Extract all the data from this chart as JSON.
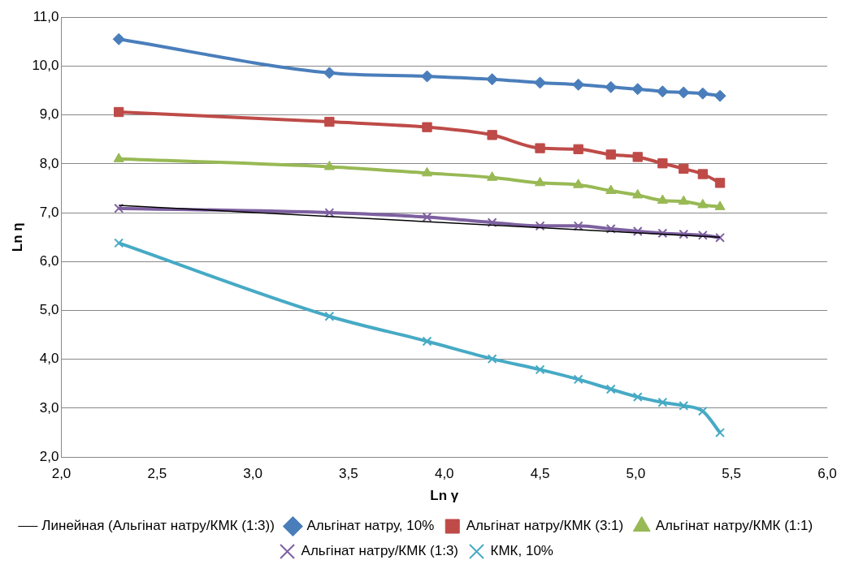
{
  "chart_data": {
    "type": "line",
    "xlabel": "Ln γ",
    "ylabel": "Ln η",
    "x": [
      2.3,
      3.4,
      3.91,
      4.25,
      4.5,
      4.7,
      4.87,
      5.01,
      5.14,
      5.25,
      5.35,
      5.44
    ],
    "xlim": [
      2.0,
      6.0
    ],
    "xticks": [
      {
        "value": 2,
        "label": "2,0"
      },
      {
        "value": 2.5,
        "label": "2,5"
      },
      {
        "value": 3,
        "label": "3,0"
      },
      {
        "value": 3.5,
        "label": "3,5"
      },
      {
        "value": 4,
        "label": "4,0"
      },
      {
        "value": 4.5,
        "label": "4,5"
      },
      {
        "value": 5,
        "label": "5,0"
      },
      {
        "value": 5.5,
        "label": "5,5"
      },
      {
        "value": 6,
        "label": "6,0"
      }
    ],
    "ylim": [
      2.0,
      11.0
    ],
    "yticks": [
      {
        "value": 2,
        "label": "2,0"
      },
      {
        "value": 3,
        "label": "3,0"
      },
      {
        "value": 4,
        "label": "4,0"
      },
      {
        "value": 5,
        "label": "5,0"
      },
      {
        "value": 6,
        "label": "6,0"
      },
      {
        "value": 7,
        "label": "7,0"
      },
      {
        "value": 8,
        "label": "8,0"
      },
      {
        "value": 9,
        "label": "9,0"
      },
      {
        "value": 10,
        "label": "10,0"
      },
      {
        "value": 11,
        "label": "11,0"
      }
    ],
    "grid": "y",
    "legend": "bottom",
    "series": [
      {
        "name": "Альгінат натру, 10%",
        "color": "#4a7ebb",
        "marker": "diamond",
        "values": [
          10.55,
          9.86,
          9.79,
          9.73,
          9.66,
          9.62,
          9.57,
          9.53,
          9.48,
          9.46,
          9.44,
          9.39
        ]
      },
      {
        "name": "Альгінат натру/КМК (3:1)",
        "color": "#be4b48",
        "marker": "square",
        "values": [
          9.06,
          8.86,
          8.75,
          8.59,
          8.32,
          8.3,
          8.19,
          8.14,
          8.01,
          7.9,
          7.79,
          7.61
        ]
      },
      {
        "name": "Альгінат натру/КМК (1:1)",
        "color": "#98b954",
        "marker": "triangle",
        "values": [
          8.1,
          7.94,
          7.81,
          7.72,
          7.61,
          7.57,
          7.45,
          7.36,
          7.25,
          7.23,
          7.16,
          7.12
        ]
      },
      {
        "name": "Альгінат натру/КМК (1:3)",
        "color": "#7d60a0",
        "marker": "cross",
        "values": [
          7.09,
          7.0,
          6.91,
          6.8,
          6.73,
          6.73,
          6.67,
          6.62,
          6.58,
          6.56,
          6.54,
          6.49
        ]
      },
      {
        "name": "КМК, 10%",
        "color": "#46aac5",
        "marker": "cross",
        "values": [
          6.38,
          4.88,
          4.37,
          4.01,
          3.79,
          3.59,
          3.39,
          3.23,
          3.12,
          3.05,
          2.94,
          2.5
        ]
      },
      {
        "name": "Линейная (Альгінат натру/КМК (1:3))",
        "color": "#000000",
        "marker": "none",
        "x": [
          2.3,
          5.44
        ],
        "values": [
          7.15,
          6.5
        ]
      }
    ]
  }
}
